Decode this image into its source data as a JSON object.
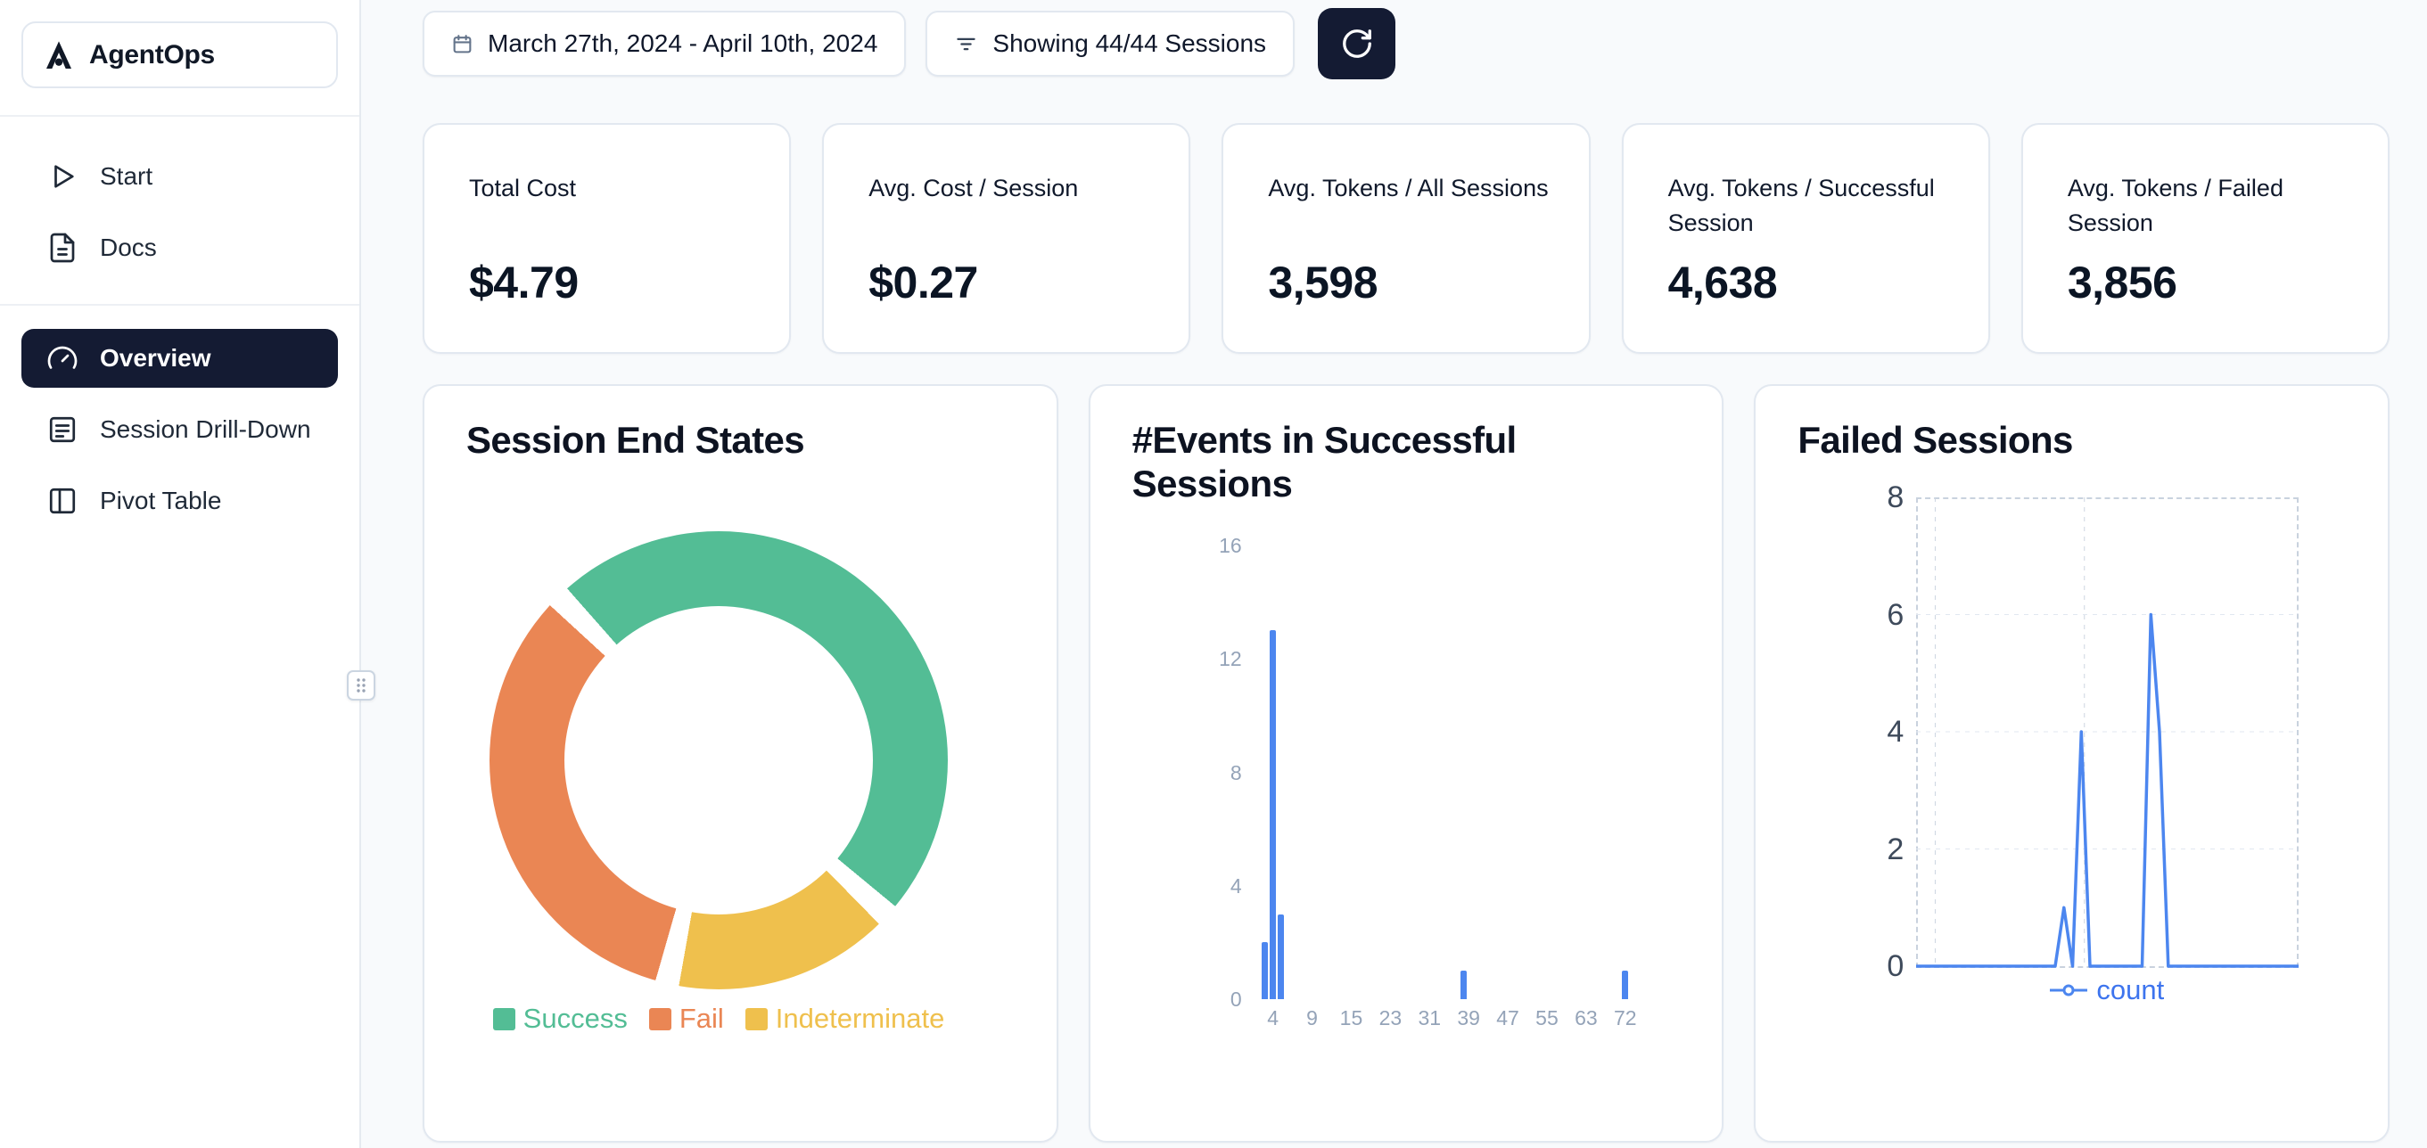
{
  "app": {
    "name": "AgentOps"
  },
  "sidebar": {
    "items": [
      {
        "label": "Start"
      },
      {
        "label": "Docs"
      },
      {
        "label": "Overview",
        "active": true
      },
      {
        "label": "Session Drill-Down"
      },
      {
        "label": "Pivot Table"
      }
    ]
  },
  "topbar": {
    "date_range": "March 27th, 2024 - April 10th, 2024",
    "sessions_filter": "Showing 44/44 Sessions"
  },
  "stats": [
    {
      "label": "Total Cost",
      "value": "$4.79"
    },
    {
      "label": "Avg. Cost / Session",
      "value": "$0.27"
    },
    {
      "label": "Avg. Tokens / All Sessions",
      "value": "3,598"
    },
    {
      "label": "Avg. Tokens / Successful Session",
      "value": "4,638"
    },
    {
      "label": "Avg. Tokens / Failed Session",
      "value": "3,856"
    }
  ],
  "colors": {
    "navy": "#141B33",
    "page_bg": "#F8FAFC",
    "card_border": "#E2E8F0",
    "success": "#53BD95",
    "fail": "#EA8654",
    "indeterminate": "#EFC04D",
    "blue": "#4C86EF"
  },
  "chart_data": [
    {
      "type": "pie",
      "title": "Session End States",
      "labels": [
        "Success",
        "Fail",
        "Indeterminate"
      ],
      "values": [
        22,
        15,
        7
      ],
      "colors": [
        "#53BD95",
        "#EA8654",
        "#EFC04D"
      ],
      "donut": true,
      "start_deg": 196,
      "order": [
        1,
        0,
        2
      ],
      "gap_deg": 6,
      "legend_position": "bottom"
    },
    {
      "type": "bar",
      "title": "#Events in Successful Sessions",
      "points": [
        {
          "x": 3,
          "count": 2
        },
        {
          "x": 4,
          "count": 13
        },
        {
          "x": 5,
          "count": 3
        },
        {
          "x": 38,
          "count": 1
        },
        {
          "x": 72,
          "count": 1
        }
      ],
      "xticks": [
        4,
        9,
        15,
        23,
        31,
        39,
        47,
        55,
        63,
        72
      ],
      "yticks": [
        0,
        4,
        8,
        12,
        16
      ],
      "ylim": [
        0,
        16
      ],
      "bar_color": "#4C86EF",
      "grid": false
    },
    {
      "type": "line",
      "title": "Failed Sessions",
      "series": [
        {
          "name": "count",
          "values": [
            0,
            0,
            0,
            0,
            0,
            0,
            0,
            0,
            0,
            0,
            0,
            0,
            0,
            0,
            0,
            0,
            0,
            1,
            0,
            4,
            0,
            0,
            0,
            0,
            0,
            0,
            0,
            6,
            4,
            0,
            0,
            0,
            0,
            0,
            0,
            0,
            0,
            0,
            0,
            0,
            0,
            0,
            0,
            0,
            0
          ]
        }
      ],
      "yticks": [
        0,
        2,
        4,
        6,
        8
      ],
      "ylim": [
        0,
        8
      ],
      "line_color": "#4C86EF",
      "grid": "dashed",
      "legend_position": "bottom"
    }
  ]
}
